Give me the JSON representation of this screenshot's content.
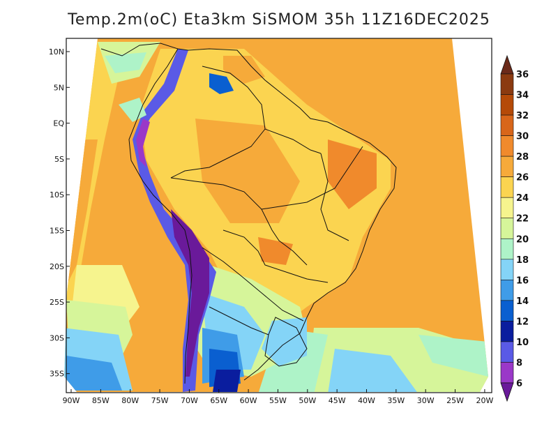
{
  "title": "Temp.2m(oC) Eta3km SiSMOM 35h 11Z16DEC2025",
  "map": {
    "lat_labels": [
      "10N",
      "5N",
      "EQ",
      "5S",
      "10S",
      "15S",
      "20S",
      "25S",
      "30S",
      "35S"
    ],
    "lon_labels": [
      "90W",
      "85W",
      "80W",
      "75W",
      "70W",
      "65W",
      "60W",
      "55W",
      "50W",
      "45W",
      "40W",
      "35W",
      "30W",
      "25W",
      "20W"
    ]
  },
  "colorbar": {
    "labels": [
      "36",
      "34",
      "32",
      "30",
      "28",
      "26",
      "24",
      "22",
      "20",
      "18",
      "16",
      "14",
      "12",
      "10",
      "8",
      "6"
    ],
    "colors": [
      "#6b2a1a",
      "#8b3a10",
      "#b54a08",
      "#d8661a",
      "#f08a2c",
      "#f6aa3a",
      "#fbd450",
      "#f6f48e",
      "#d6f59a",
      "#aef3c8",
      "#84d4f7",
      "#3f9ce8",
      "#0a5fd0",
      "#0a1d9e",
      "#5a5ae6",
      "#9a38c8",
      "#6a1a9a"
    ]
  }
}
